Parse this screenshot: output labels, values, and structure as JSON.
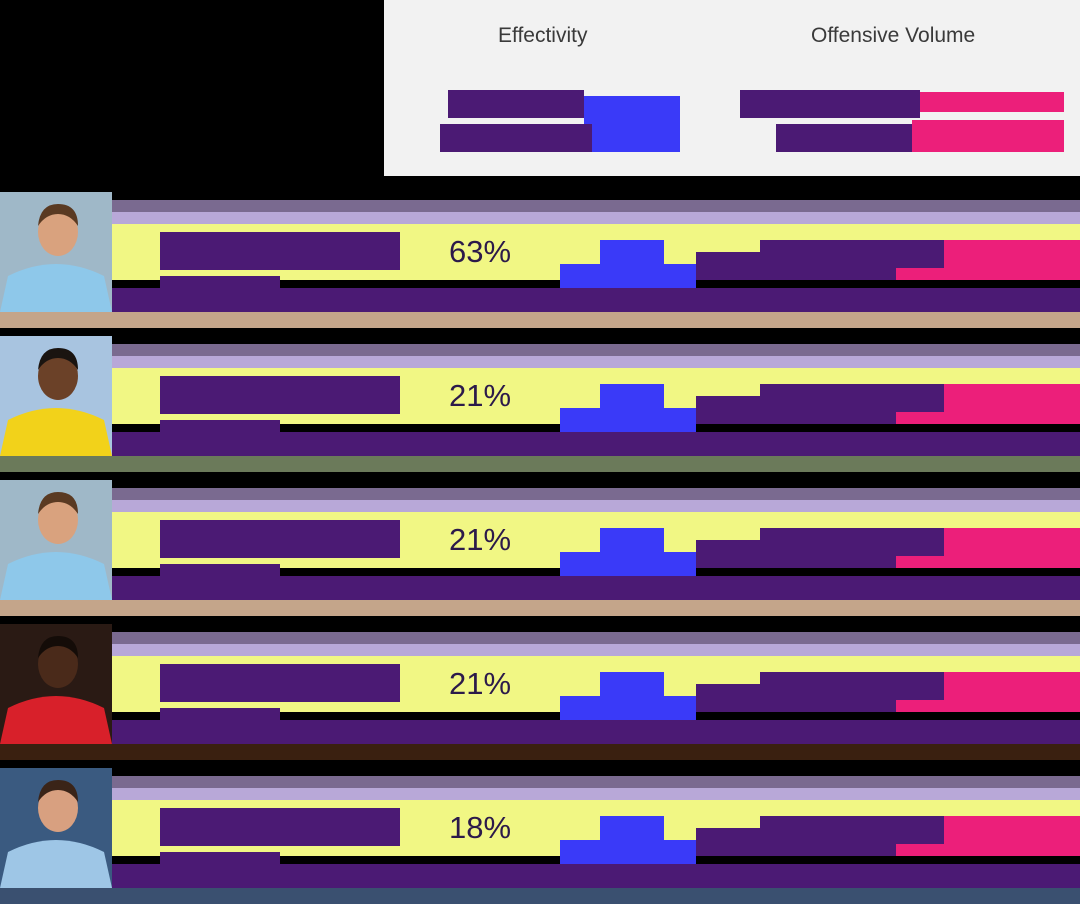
{
  "colors": {
    "background": "#000000",
    "header_bg": "#f2f2f2",
    "purple": "#4b1a74",
    "blue": "#3a3af8",
    "pink": "#ec1f7a",
    "yellow": "#f1f784",
    "text_dark": "#2c1a4a"
  },
  "header": {
    "effectivity_label": "Effectivity",
    "offensive_volume_label": "Offensive Volume"
  },
  "chart_data": {
    "type": "table",
    "columns": [
      "Effectivity",
      "Offensive Volume"
    ],
    "rows": [
      {
        "effectivity_pct": 63,
        "effectivity_label": "63%",
        "photo": "player-photo-sky-blue-kit",
        "band": "#c4a58a"
      },
      {
        "effectivity_pct": 21,
        "effectivity_label": "21%",
        "photo": "player-photo-yellow-black-kit",
        "band": "#6b7a5a"
      },
      {
        "effectivity_pct": 21,
        "effectivity_label": "21%",
        "photo": "player-photo-sky-blue-kit",
        "band": "#c4a58a"
      },
      {
        "effectivity_pct": 21,
        "effectivity_label": "21%",
        "photo": "player-photo-red-white-kit",
        "band": "#3a2010"
      },
      {
        "effectivity_pct": 18,
        "effectivity_label": "18%",
        "photo": "player-photo-light-blue-kit",
        "band": "#3a5070"
      }
    ]
  }
}
